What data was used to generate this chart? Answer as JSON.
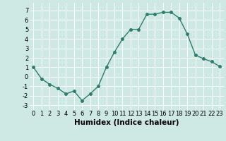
{
  "x": [
    0,
    1,
    2,
    3,
    4,
    5,
    6,
    7,
    8,
    9,
    10,
    11,
    12,
    13,
    14,
    15,
    16,
    17,
    18,
    19,
    20,
    21,
    22,
    23
  ],
  "y": [
    1,
    -0.2,
    -0.8,
    -1.2,
    -1.8,
    -1.5,
    -2.5,
    -1.8,
    -1.0,
    1.0,
    2.6,
    4.0,
    5.0,
    5.0,
    6.6,
    6.6,
    6.8,
    6.8,
    6.2,
    4.5,
    2.3,
    1.9,
    1.6,
    1.1
  ],
  "line_color": "#2e7d6e",
  "marker": "o",
  "markersize": 2.5,
  "linewidth": 1.0,
  "xlabel": "Humidex (Indice chaleur)",
  "xlim": [
    -0.5,
    23.5
  ],
  "ylim": [
    -3.5,
    7.8
  ],
  "yticks": [
    -3,
    -2,
    -1,
    0,
    1,
    2,
    3,
    4,
    5,
    6,
    7
  ],
  "xticks": [
    0,
    1,
    2,
    3,
    4,
    5,
    6,
    7,
    8,
    9,
    10,
    11,
    12,
    13,
    14,
    15,
    16,
    17,
    18,
    19,
    20,
    21,
    22,
    23
  ],
  "background_color": "#cee8e3",
  "grid_color": "#ffffff",
  "tick_fontsize": 6,
  "xlabel_fontsize": 7.5
}
